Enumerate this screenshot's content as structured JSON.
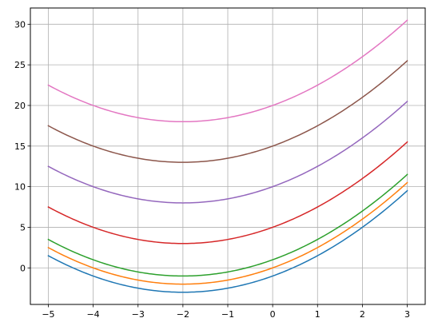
{
  "chart_data": {
    "type": "line",
    "title": "",
    "xlabel": "",
    "ylabel": "",
    "xlim": [
      -5.4,
      3.4
    ],
    "ylim": [
      -4.5,
      32.0
    ],
    "grid": true,
    "x_ticks": [
      -5,
      -4,
      -3,
      -2,
      -1,
      0,
      1,
      2,
      3
    ],
    "x_tick_labels": [
      "−5",
      "−4",
      "−3",
      "−2",
      "−1",
      "0",
      "1",
      "2",
      "3"
    ],
    "y_ticks": [
      0,
      5,
      10,
      15,
      20,
      25,
      30
    ],
    "y_tick_labels": [
      "0",
      "5",
      "10",
      "15",
      "20",
      "25",
      "30"
    ],
    "series": [
      {
        "color": "#1f77b4",
        "x": [
          -5,
          -4,
          -3,
          -2,
          -1,
          0,
          1,
          2,
          3
        ],
        "y": [
          1.5,
          -1.0,
          -2.5,
          -3.0,
          -2.5,
          -1.0,
          1.5,
          5.0,
          9.5
        ]
      },
      {
        "color": "#ff7f0e",
        "x": [
          -5,
          -4,
          -3,
          -2,
          -1,
          0,
          1,
          2,
          3
        ],
        "y": [
          2.5,
          0.0,
          -1.5,
          -2.0,
          -1.5,
          0.0,
          2.5,
          6.0,
          10.5
        ]
      },
      {
        "color": "#2ca02c",
        "x": [
          -5,
          -4,
          -3,
          -2,
          -1,
          0,
          1,
          2,
          3
        ],
        "y": [
          3.5,
          1.0,
          -0.5,
          -1.0,
          -0.5,
          1.0,
          3.5,
          7.0,
          11.5
        ]
      },
      {
        "color": "#d62728",
        "x": [
          -5,
          -4,
          -3,
          -2,
          -1,
          0,
          1,
          2,
          3
        ],
        "y": [
          7.5,
          5.0,
          3.5,
          3.0,
          3.5,
          5.0,
          7.5,
          11.0,
          15.5
        ]
      },
      {
        "color": "#9467bd",
        "x": [
          -5,
          -4,
          -3,
          -2,
          -1,
          0,
          1,
          2,
          3
        ],
        "y": [
          12.5,
          10.0,
          8.5,
          8.0,
          8.5,
          10.0,
          12.5,
          16.0,
          20.5
        ]
      },
      {
        "color": "#8c564b",
        "x": [
          -5,
          -4,
          -3,
          -2,
          -1,
          0,
          1,
          2,
          3
        ],
        "y": [
          17.5,
          15.0,
          13.5,
          13.0,
          13.5,
          15.0,
          17.5,
          21.0,
          25.5
        ]
      },
      {
        "color": "#e377c2",
        "x": [
          -5,
          -4,
          -3,
          -2,
          -1,
          0,
          1,
          2,
          3
        ],
        "y": [
          22.5,
          20.0,
          18.5,
          18.0,
          18.5,
          20.0,
          22.5,
          26.0,
          30.5
        ]
      }
    ]
  }
}
